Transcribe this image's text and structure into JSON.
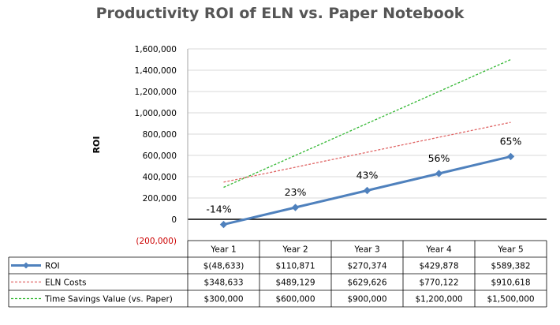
{
  "chart_data": {
    "type": "line",
    "title": "Productivity ROI of ELN vs. Paper Notebook",
    "ylabel": "ROI",
    "categories": [
      "Year 1",
      "Year 2",
      "Year 3",
      "Year 4",
      "Year 5"
    ],
    "ylim": [
      -200000,
      1600000
    ],
    "yticks": [
      1600000,
      1400000,
      1200000,
      1000000,
      800000,
      600000,
      400000,
      200000,
      0,
      -200000
    ],
    "ytick_labels": [
      "1,600,000",
      "1,400,000",
      "1,200,000",
      "1,000,000",
      "800,000",
      "600,000",
      "400,000",
      "200,000",
      "0",
      "(200,000)"
    ],
    "negative_tick_color": "#cc0000",
    "grid": "horizontal",
    "legend": "data-table",
    "series": [
      {
        "name": "ROI",
        "values": [
          -48633,
          110871,
          270374,
          429878,
          589382
        ],
        "color": "#4f81bd",
        "style": "solid-marker",
        "data_labels": [
          "-14%",
          "23%",
          "43%",
          "56%",
          "65%"
        ],
        "table_values": [
          "$(48,633)",
          "$110,871",
          "$270,374",
          "$429,878",
          "$589,382"
        ]
      },
      {
        "name": "ELN Costs",
        "values": [
          348633,
          489129,
          629626,
          770122,
          910618
        ],
        "color": "#e06666",
        "style": "dotted",
        "table_values": [
          "$348,633",
          "$489,129",
          "$629,626",
          "$770,122",
          "$910,618"
        ]
      },
      {
        "name": "Time Savings Value (vs. Paper)",
        "values": [
          300000,
          600000,
          900000,
          1200000,
          1500000
        ],
        "color": "#33b833",
        "style": "dotted",
        "table_values": [
          "$300,000",
          "$600,000",
          "$900,000",
          "$1,200,000",
          "$1,500,000"
        ]
      }
    ]
  }
}
